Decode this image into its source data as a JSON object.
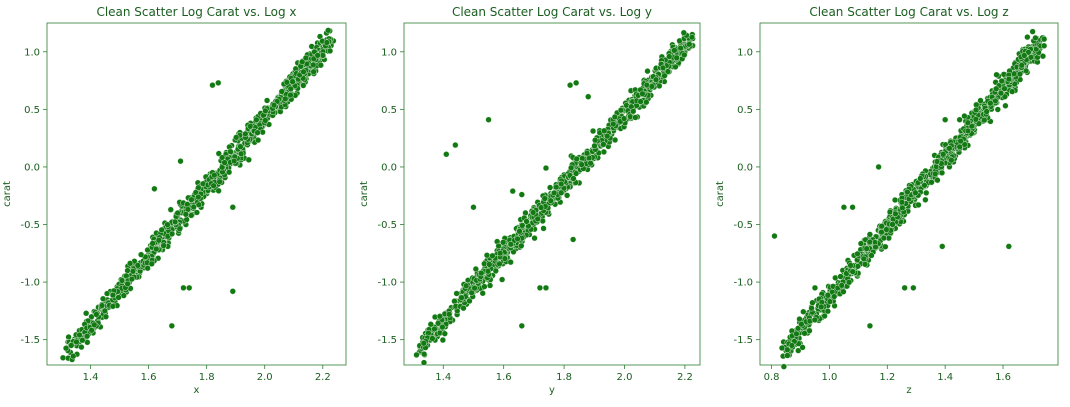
{
  "theme": {
    "text_color": "#1b5e20",
    "point_fill": "#137913",
    "point_edge": "#e6f2e6",
    "frame_color": "#2e7d32"
  },
  "chart_data": [
    {
      "type": "scatter",
      "title": "Clean Scatter Log Carat vs. Log x",
      "xlabel": "x",
      "ylabel": "carat",
      "xlim": [
        1.25,
        2.28
      ],
      "ylim": [
        -1.72,
        1.25
      ],
      "xticks": [
        1.4,
        1.6,
        1.8,
        2.0,
        2.2
      ],
      "yticks": [
        -1.5,
        -1.0,
        -0.5,
        0.0,
        0.5,
        1.0
      ],
      "trend": {
        "x_start": 1.32,
        "x_end": 2.23,
        "y_start": -1.61,
        "y_end": 1.11
      },
      "outliers": [
        [
          1.82,
          0.71
        ],
        [
          1.84,
          0.73
        ],
        [
          1.71,
          0.05
        ],
        [
          1.62,
          -0.19
        ],
        [
          1.89,
          -0.35
        ],
        [
          1.72,
          -1.05
        ],
        [
          1.74,
          -1.05
        ],
        [
          1.89,
          -1.08
        ],
        [
          1.68,
          -1.38
        ]
      ],
      "grid": false,
      "legend": "none"
    },
    {
      "type": "scatter",
      "title": "Clean Scatter Log Carat vs. Log y",
      "xlabel": "y",
      "ylabel": "carat",
      "xlim": [
        1.27,
        2.25
      ],
      "ylim": [
        -1.72,
        1.25
      ],
      "xticks": [
        1.4,
        1.6,
        1.8,
        2.0,
        2.2
      ],
      "yticks": [
        -1.5,
        -1.0,
        -0.5,
        0.0,
        0.5,
        1.0
      ],
      "trend": {
        "x_start": 1.31,
        "x_end": 2.22,
        "y_start": -1.61,
        "y_end": 1.11
      },
      "outliers": [
        [
          1.41,
          0.11
        ],
        [
          1.44,
          0.19
        ],
        [
          1.55,
          0.41
        ],
        [
          1.5,
          -0.35
        ],
        [
          1.63,
          -0.21
        ],
        [
          1.66,
          -0.24
        ],
        [
          1.74,
          -0.01
        ],
        [
          1.82,
          0.71
        ],
        [
          1.84,
          0.73
        ],
        [
          1.88,
          0.61
        ],
        [
          1.83,
          -0.63
        ],
        [
          1.72,
          -1.05
        ],
        [
          1.74,
          -1.05
        ],
        [
          1.66,
          -1.38
        ]
      ],
      "grid": false,
      "legend": "none"
    },
    {
      "type": "scatter",
      "title": "Clean Scatter Log Carat vs. Log z",
      "xlabel": "z",
      "ylabel": "carat",
      "xlim": [
        0.76,
        1.79
      ],
      "ylim": [
        -1.72,
        1.25
      ],
      "xticks": [
        0.8,
        1.0,
        1.2,
        1.4,
        1.6
      ],
      "yticks": [
        -1.5,
        -1.0,
        -0.5,
        0.0,
        0.5,
        1.0
      ],
      "trend": {
        "x_start": 0.84,
        "x_end": 1.74,
        "y_start": -1.61,
        "y_end": 1.11
      },
      "outliers": [
        [
          0.81,
          -0.6
        ],
        [
          1.17,
          0.0
        ],
        [
          1.05,
          -0.35
        ],
        [
          1.08,
          -0.35
        ],
        [
          1.39,
          -0.69
        ],
        [
          1.62,
          -0.69
        ],
        [
          0.95,
          -1.05
        ],
        [
          1.26,
          -1.05
        ],
        [
          1.29,
          -1.05
        ],
        [
          1.14,
          -1.38
        ],
        [
          1.4,
          0.41
        ],
        [
          1.45,
          0.41
        ]
      ],
      "grid": false,
      "legend": "none"
    }
  ]
}
